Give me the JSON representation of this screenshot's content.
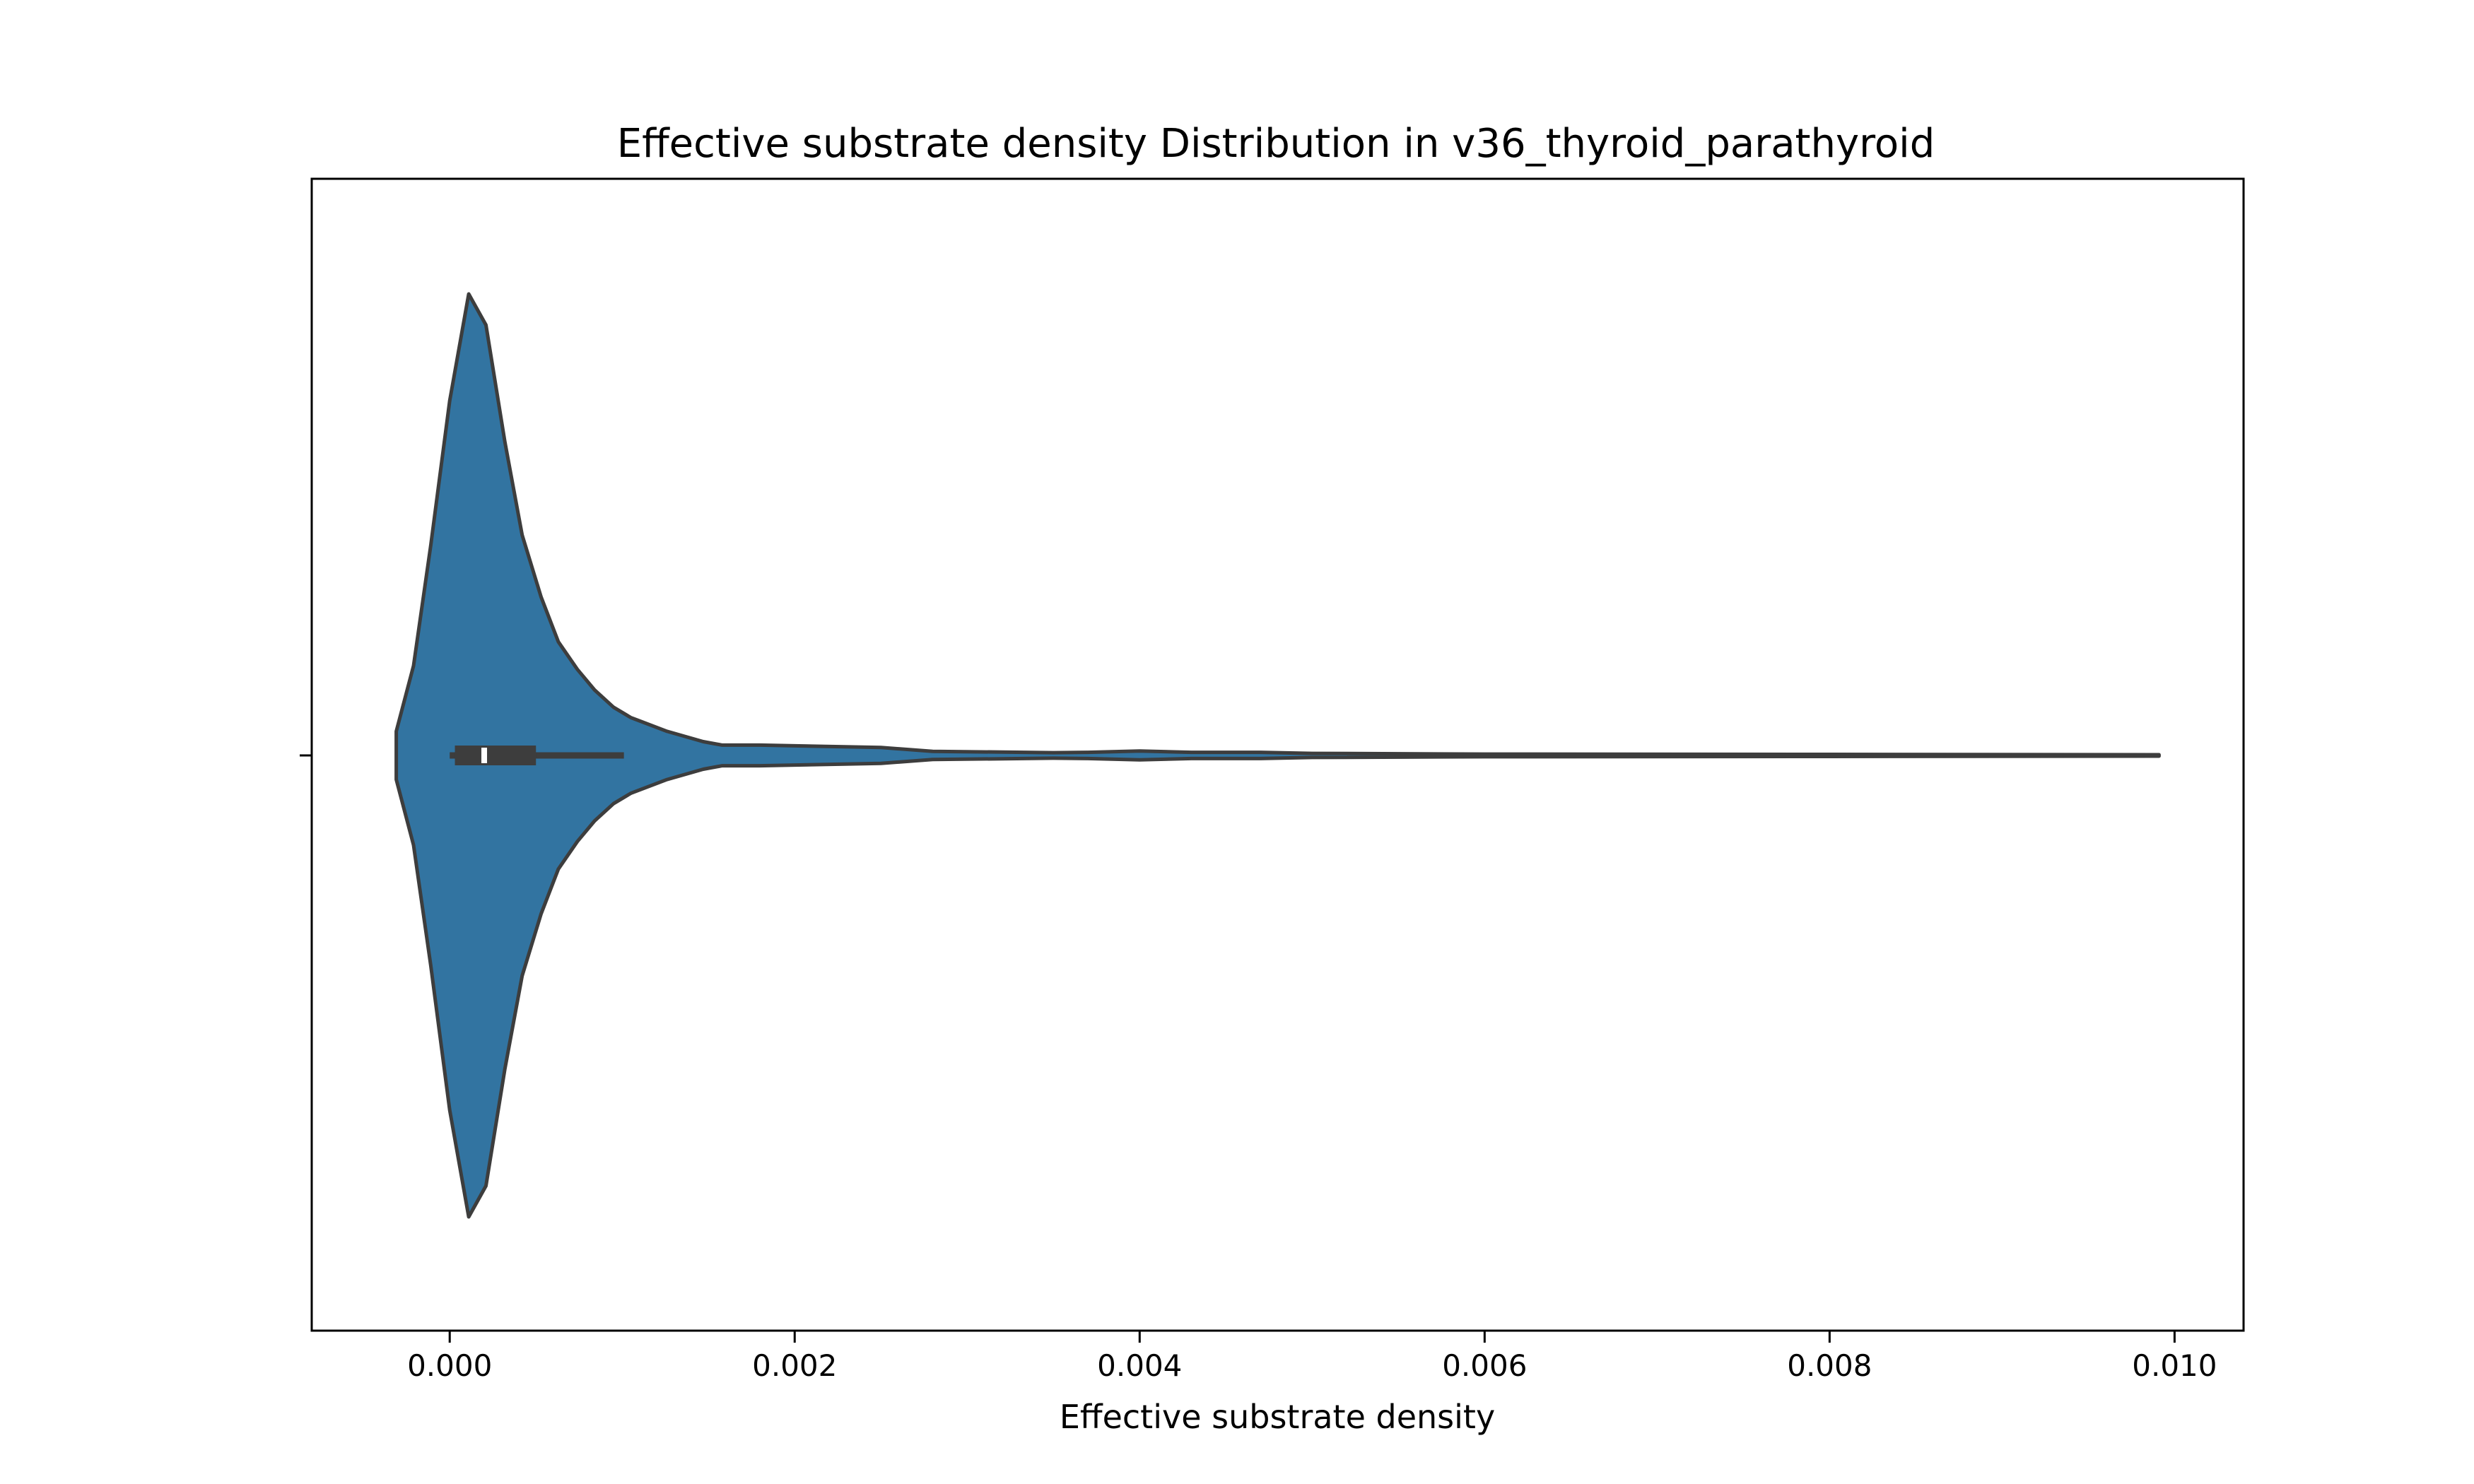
{
  "chart_data": {
    "type": "violin",
    "title": "Effective substrate density Distribution in v36_thyroid_parathyroid",
    "xlabel": "Effective substrate density",
    "ylabel": "",
    "xlim": [
      -0.0008,
      0.0104
    ],
    "xticks": [
      {
        "value": 0.0,
        "label": "0.000"
      },
      {
        "value": 0.002,
        "label": "0.002"
      },
      {
        "value": 0.004,
        "label": "0.004"
      },
      {
        "value": 0.006,
        "label": "0.006"
      },
      {
        "value": 0.008,
        "label": "0.008"
      },
      {
        "value": 0.01,
        "label": "0.010"
      }
    ],
    "grid": false,
    "fill_color": "#3274a1",
    "edge_color": "#3d3d3d",
    "violin": {
      "x": [
        -0.00031,
        -0.00021,
        -0.00011,
        0.0,
        0.00011,
        0.00021,
        0.00032,
        0.00042,
        0.00053,
        0.00063,
        0.00074,
        0.00084,
        0.00095,
        0.00105,
        0.00126,
        0.00147,
        0.00158,
        0.0018,
        0.002,
        0.0025,
        0.0028,
        0.0035,
        0.0037,
        0.004,
        0.0043,
        0.0047,
        0.005,
        0.006,
        0.008,
        0.00991
      ],
      "density": [
        0.07,
        0.26,
        0.61,
        1.03,
        1.34,
        1.25,
        0.91,
        0.64,
        0.46,
        0.33,
        0.25,
        0.19,
        0.14,
        0.11,
        0.07,
        0.04,
        0.03,
        0.03,
        0.028,
        0.023,
        0.012,
        0.008,
        0.009,
        0.013,
        0.009,
        0.009,
        0.006,
        0.004,
        0.003,
        0.002
      ]
    },
    "box": {
      "whisker_low": 0.0,
      "q1": 3e-05,
      "median": 0.0002,
      "q3": 0.0005,
      "whisker_high": 0.00101
    }
  }
}
